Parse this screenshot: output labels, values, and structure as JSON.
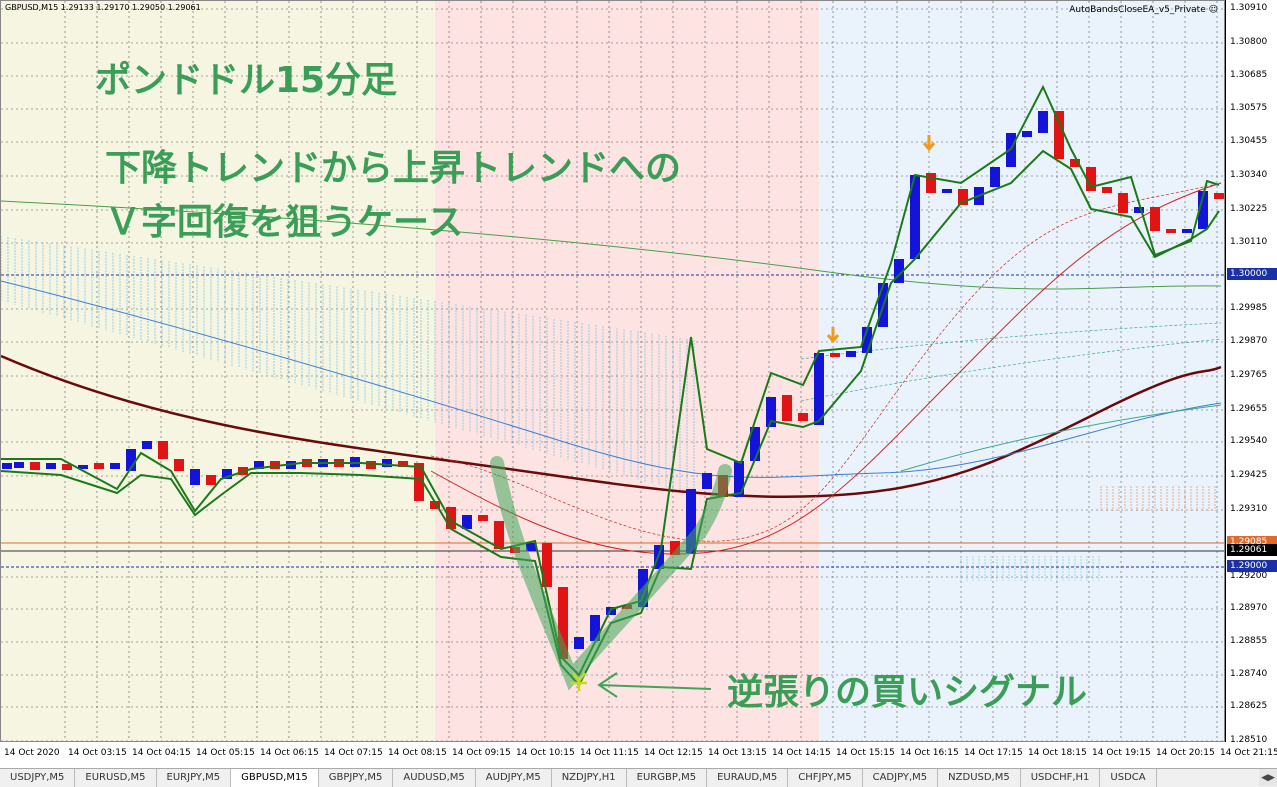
{
  "symbol_info": "GBPUSD,M15  1.29133 1.29170 1.29050 1.29061",
  "ea_label": "AutoBandsCloseEA_v5_Private ☺",
  "annotations": {
    "title": "ポンドドル15分足",
    "line1": "下降トレンドから上昇トレンドへの",
    "line2": "Ｖ字回復を狙うケース",
    "signal": "逆張りの買いシグナル"
  },
  "price_scale": {
    "ticks": [
      "1.30910",
      "1.30800",
      "1.30685",
      "1.30575",
      "1.30455",
      "1.30340",
      "1.30225",
      "1.30110",
      "1.29985",
      "1.29870",
      "1.29765",
      "1.29655",
      "1.29540",
      "1.29425",
      "1.29310",
      "1.29200",
      "1.28970",
      "1.28855",
      "1.28740",
      "1.28625",
      "1.28510",
      "1.28400"
    ],
    "tags": [
      {
        "label": "1.30000",
        "color": "#1b2fa8"
      },
      {
        "label": "1.29085",
        "color": "#e06a2a"
      },
      {
        "label": "1.29061",
        "color": "#000000"
      },
      {
        "label": "1.29000",
        "color": "#1b2fa8"
      }
    ]
  },
  "time_axis": [
    "14 Oct 2020",
    "14 Oct 03:15",
    "14 Oct 04:15",
    "14 Oct 05:15",
    "14 Oct 06:15",
    "14 Oct 07:15",
    "14 Oct 08:15",
    "14 Oct 09:15",
    "14 Oct 10:15",
    "14 Oct 11:15",
    "14 Oct 12:15",
    "14 Oct 13:15",
    "14 Oct 14:15",
    "14 Oct 15:15",
    "14 Oct 16:15",
    "14 Oct 17:15",
    "14 Oct 18:15",
    "14 Oct 19:15",
    "14 Oct 20:15",
    "14 Oct 21:15"
  ],
  "tabs": [
    "USDJPY,M5",
    "EURUSD,M5",
    "EURJPY,M5",
    "GBPUSD,M15",
    "GBPJPY,M5",
    "AUDUSD,M5",
    "AUDJPY,M5",
    "NZDJPY,H1",
    "EURGBP,M5",
    "EURAUD,M5",
    "CHFJPY,M5",
    "CADJPY,M5",
    "NZDUSD,M5",
    "USDCHF,H1",
    "USDCA"
  ],
  "active_tab": "GBPUSD,M15",
  "colors": {
    "bull": "#1414d8",
    "bear": "#e01414",
    "band": "#1a7a1a",
    "note": "#3a9e58",
    "zone1": "#f6f5e1",
    "zone2": "#fde4e2",
    "zone3": "#eaf3fc"
  }
}
